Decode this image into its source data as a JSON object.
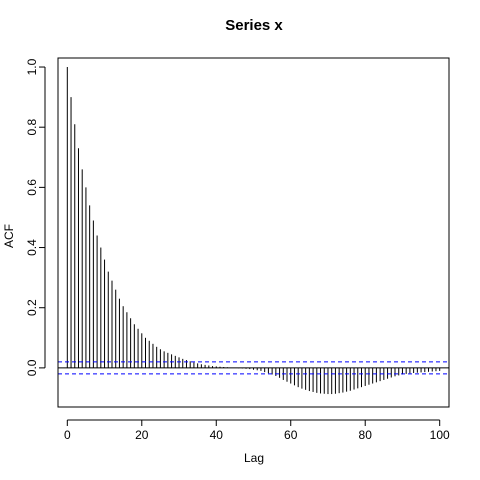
{
  "chart_data": {
    "type": "bar",
    "title": "Series  x",
    "xlabel": "Lag",
    "ylabel": "ACF",
    "xlim": [
      -2.5,
      102.5
    ],
    "ylim": [
      -0.13,
      1.03
    ],
    "xticks": [
      0,
      20,
      40,
      60,
      80,
      100
    ],
    "yticks": [
      0.0,
      0.2,
      0.4,
      0.6,
      0.8,
      1.0
    ],
    "ytick_labels": [
      "0.0",
      "0.2",
      "0.4",
      "0.6",
      "0.8",
      "1.0"
    ],
    "confidence_bound": 0.02,
    "lags": [
      0,
      1,
      2,
      3,
      4,
      5,
      6,
      7,
      8,
      9,
      10,
      11,
      12,
      13,
      14,
      15,
      16,
      17,
      18,
      19,
      20,
      21,
      22,
      23,
      24,
      25,
      26,
      27,
      28,
      29,
      30,
      31,
      32,
      33,
      34,
      35,
      36,
      37,
      38,
      39,
      40,
      41,
      42,
      43,
      44,
      45,
      46,
      47,
      48,
      49,
      50,
      51,
      52,
      53,
      54,
      55,
      56,
      57,
      58,
      59,
      60,
      61,
      62,
      63,
      64,
      65,
      66,
      67,
      68,
      69,
      70,
      71,
      72,
      73,
      74,
      75,
      76,
      77,
      78,
      79,
      80,
      81,
      82,
      83,
      84,
      85,
      86,
      87,
      88,
      89,
      90,
      91,
      92,
      93,
      94,
      95,
      96,
      97,
      98,
      99,
      100
    ],
    "acf": [
      1.0,
      0.9,
      0.81,
      0.73,
      0.66,
      0.6,
      0.54,
      0.49,
      0.44,
      0.4,
      0.36,
      0.32,
      0.29,
      0.26,
      0.23,
      0.205,
      0.185,
      0.165,
      0.145,
      0.13,
      0.115,
      0.1,
      0.09,
      0.08,
      0.07,
      0.062,
      0.055,
      0.05,
      0.045,
      0.04,
      0.035,
      0.03,
      0.026,
      0.022,
      0.018,
      0.015,
      0.012,
      0.01,
      0.008,
      0.006,
      0.005,
      0.004,
      0.003,
      0.002,
      0.001,
      0.0,
      -0.001,
      -0.002,
      -0.003,
      -0.004,
      -0.006,
      -0.008,
      -0.01,
      -0.014,
      -0.018,
      -0.022,
      -0.027,
      -0.033,
      -0.04,
      -0.046,
      -0.052,
      -0.058,
      -0.064,
      -0.069,
      -0.073,
      -0.077,
      -0.08,
      -0.083,
      -0.085,
      -0.086,
      -0.087,
      -0.087,
      -0.086,
      -0.084,
      -0.082,
      -0.079,
      -0.076,
      -0.072,
      -0.068,
      -0.064,
      -0.06,
      -0.056,
      -0.052,
      -0.048,
      -0.044,
      -0.04,
      -0.036,
      -0.032,
      -0.028,
      -0.025,
      -0.022,
      -0.02,
      -0.018,
      -0.017,
      -0.016,
      -0.015,
      -0.014,
      -0.013,
      -0.012,
      -0.011,
      -0.01
    ],
    "colors": {
      "bars": "#000000",
      "ci_lines": "#0000ff",
      "zero_line": "#000000"
    }
  }
}
